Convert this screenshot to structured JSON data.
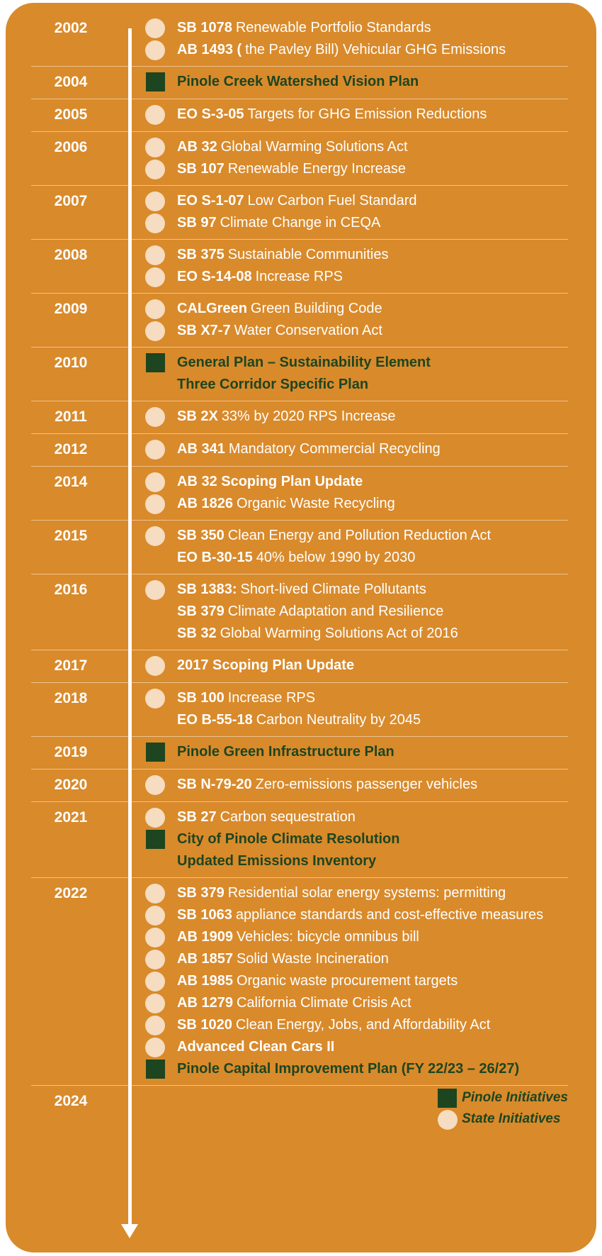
{
  "timeline": [
    {
      "year": "2002",
      "items": [
        {
          "code": "SB 1078",
          "text": "Renewable Portfolio Standards",
          "kind": "state"
        },
        {
          "code": "AB 1493 (",
          "text": "the Pavley Bill) Vehicular GHG Emissions",
          "kind": "state"
        }
      ]
    },
    {
      "year": "2004",
      "items": [
        {
          "code": "Pinole Creek Watershed Vision Plan",
          "kind": "pinole"
        }
      ]
    },
    {
      "year": "2005",
      "items": [
        {
          "code": "EO S-3-05",
          "text": "Targets for GHG Emission Reductions",
          "kind": "state"
        }
      ]
    },
    {
      "year": "2006",
      "items": [
        {
          "code": "AB 32",
          "text": "Global Warming Solutions Act",
          "kind": "state"
        },
        {
          "code": "SB 107",
          "text": "Renewable Energy Increase",
          "kind": "state"
        }
      ]
    },
    {
      "year": "2007",
      "items": [
        {
          "code": "EO S-1-07",
          "text": "Low Carbon Fuel Standard",
          "kind": "state"
        },
        {
          "code": "SB 97",
          "text": "Climate Change in CEQA",
          "kind": "state"
        }
      ]
    },
    {
      "year": "2008",
      "items": [
        {
          "code": "SB 375",
          "text": "Sustainable Communities",
          "kind": "state"
        },
        {
          "code": "EO S-14-08",
          "text": "Increase RPS",
          "kind": "state"
        }
      ]
    },
    {
      "year": "2009",
      "items": [
        {
          "code": "CALGreen",
          "text": "Green Building Code",
          "kind": "state"
        },
        {
          "code": "SB X7-7",
          "text": "Water Conservation Act",
          "kind": "state"
        }
      ]
    },
    {
      "year": "2010",
      "items": [
        {
          "code": "General Plan – Sustainability Element",
          "kind": "pinole"
        },
        {
          "code": "Three Corridor Specific Plan",
          "kind": "pinole",
          "marker": false
        }
      ]
    },
    {
      "year": "2011",
      "items": [
        {
          "code": "SB 2X",
          "text": "33% by 2020 RPS Increase",
          "kind": "state"
        }
      ]
    },
    {
      "year": "2012",
      "items": [
        {
          "code": "AB 341",
          "text": "Mandatory Commercial Recycling",
          "kind": "state"
        }
      ]
    },
    {
      "year": "2014",
      "items": [
        {
          "code": "AB 32 Scoping Plan Update",
          "kind": "state"
        },
        {
          "code": "AB 1826",
          "text": "Organic Waste Recycling",
          "kind": "state"
        }
      ]
    },
    {
      "year": "2015",
      "items": [
        {
          "code": "SB 350",
          "text": "Clean Energy and Pollution Reduction Act",
          "kind": "state"
        },
        {
          "code": "EO B-30-15",
          "text": "40% below 1990 by 2030",
          "kind": "state",
          "marker": false
        }
      ]
    },
    {
      "year": "2016",
      "items": [
        {
          "code": "SB 1383:",
          "text": "Short-lived Climate Pollutants",
          "kind": "state"
        },
        {
          "code": "SB 379",
          "text": "Climate Adaptation and Resilience",
          "kind": "state",
          "marker": false
        },
        {
          "code": "SB 32",
          "text": "Global Warming Solutions Act of 2016",
          "kind": "state",
          "marker": false
        }
      ]
    },
    {
      "year": "2017",
      "items": [
        {
          "code": "2017 Scoping Plan Update",
          "kind": "state"
        }
      ]
    },
    {
      "year": "2018",
      "items": [
        {
          "code": "SB 100",
          "text": "Increase RPS",
          "kind": "state"
        },
        {
          "code": "EO B-55-18",
          "text": "Carbon Neutrality by 2045",
          "kind": "state",
          "marker": false
        }
      ]
    },
    {
      "year": "2019",
      "items": [
        {
          "code": "Pinole Green Infrastructure Plan",
          "kind": "pinole"
        }
      ]
    },
    {
      "year": "2020",
      "items": [
        {
          "code": "SB N-79-20",
          "text": "Zero-emissions passenger vehicles",
          "kind": "state"
        }
      ]
    },
    {
      "year": "2021",
      "items": [
        {
          "code": "SB 27",
          "text": "Carbon sequestration",
          "kind": "state"
        },
        {
          "code": "City of Pinole Climate Resolution",
          "kind": "pinole"
        },
        {
          "code": "Updated Emissions Inventory",
          "kind": "pinole",
          "marker": false
        }
      ]
    },
    {
      "year": "2022",
      "items": [
        {
          "code": "SB 379",
          "text": "Residential solar energy systems: permitting",
          "kind": "state"
        },
        {
          "code": "SB 1063",
          "text": "appliance standards and cost-effective measures",
          "kind": "state"
        },
        {
          "code": "AB 1909",
          "text": "Vehicles: bicycle omnibus bill",
          "kind": "state"
        },
        {
          "code": "AB 1857",
          "text": "Solid Waste Incineration",
          "kind": "state"
        },
        {
          "code": "AB 1985",
          "text": "Organic waste procurement targets",
          "kind": "state"
        },
        {
          "code": "AB 1279",
          "text": "California Climate Crisis Act",
          "kind": "state"
        },
        {
          "code": "SB 1020",
          "text": "Clean Energy, Jobs, and Affordability Act",
          "kind": "state"
        },
        {
          "code": "Advanced Clean Cars II",
          "kind": "state"
        },
        {
          "code": "Pinole Capital Improvement Plan (FY 22/23 – 26/27)",
          "kind": "pinole"
        }
      ]
    },
    {
      "year": "2024"
    }
  ],
  "legend": [
    {
      "label": "Pinole Initiatives",
      "kind": "pinole"
    },
    {
      "label": "State Initiatives",
      "kind": "state"
    }
  ]
}
